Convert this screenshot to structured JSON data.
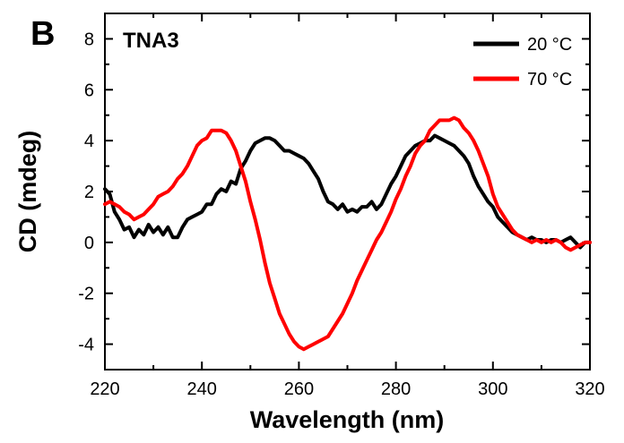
{
  "panel_label": "B",
  "chart_data": {
    "type": "line",
    "title": "TNA3",
    "xlabel": "Wavelength (nm)",
    "ylabel": "CD (mdeg)",
    "xlim": [
      220,
      320
    ],
    "ylim": [
      -5,
      9
    ],
    "xticks": [
      220,
      240,
      260,
      280,
      300,
      320
    ],
    "yticks": [
      -4,
      -2,
      0,
      2,
      4,
      6,
      8
    ],
    "grid": false,
    "legend_position": "top-right",
    "series": [
      {
        "name": "20 °C",
        "color": "#000000",
        "x": [
          220,
          221,
          222,
          223,
          224,
          225,
          226,
          227,
          228,
          229,
          230,
          231,
          232,
          233,
          234,
          235,
          236,
          237,
          238,
          239,
          240,
          241,
          242,
          243,
          244,
          245,
          246,
          247,
          248,
          249,
          250,
          251,
          252,
          253,
          254,
          255,
          256,
          257,
          258,
          259,
          260,
          261,
          262,
          263,
          264,
          265,
          266,
          267,
          268,
          269,
          270,
          271,
          272,
          273,
          274,
          275,
          276,
          277,
          278,
          279,
          280,
          281,
          282,
          283,
          284,
          285,
          286,
          287,
          288,
          289,
          290,
          291,
          292,
          293,
          294,
          295,
          296,
          297,
          298,
          299,
          300,
          301,
          302,
          303,
          304,
          305,
          306,
          307,
          308,
          309,
          310,
          311,
          312,
          313,
          314,
          315,
          316,
          317,
          318,
          319,
          320
        ],
        "y": [
          2.1,
          1.9,
          1.2,
          0.9,
          0.5,
          0.6,
          0.2,
          0.5,
          0.3,
          0.7,
          0.4,
          0.6,
          0.3,
          0.6,
          0.2,
          0.2,
          0.6,
          0.9,
          1.0,
          1.1,
          1.2,
          1.5,
          1.5,
          1.9,
          2.1,
          2.0,
          2.4,
          2.3,
          2.9,
          3.2,
          3.6,
          3.9,
          4.0,
          4.1,
          4.1,
          4.0,
          3.8,
          3.6,
          3.6,
          3.5,
          3.4,
          3.3,
          3.1,
          2.8,
          2.5,
          2.0,
          1.6,
          1.5,
          1.3,
          1.5,
          1.2,
          1.3,
          1.2,
          1.4,
          1.4,
          1.6,
          1.3,
          1.5,
          1.9,
          2.3,
          2.6,
          3.0,
          3.4,
          3.6,
          3.8,
          3.9,
          4.0,
          4.0,
          4.2,
          4.1,
          4.0,
          3.9,
          3.8,
          3.6,
          3.4,
          3.1,
          2.6,
          2.2,
          1.9,
          1.6,
          1.4,
          1.0,
          0.8,
          0.6,
          0.4,
          0.3,
          0.2,
          0.1,
          0.2,
          0.1,
          0.1,
          0.0,
          0.1,
          0.1,
          0.0,
          0.1,
          0.2,
          0.0,
          -0.2,
          0.0,
          0.0
        ]
      },
      {
        "name": "70 °C",
        "color": "#ff0000",
        "x": [
          220,
          221,
          222,
          223,
          224,
          225,
          226,
          227,
          228,
          229,
          230,
          231,
          232,
          233,
          234,
          235,
          236,
          237,
          238,
          239,
          240,
          241,
          242,
          243,
          244,
          245,
          246,
          247,
          248,
          249,
          250,
          251,
          252,
          253,
          254,
          255,
          256,
          257,
          258,
          259,
          260,
          261,
          262,
          263,
          264,
          265,
          266,
          267,
          268,
          269,
          270,
          271,
          272,
          273,
          274,
          275,
          276,
          277,
          278,
          279,
          280,
          281,
          282,
          283,
          284,
          285,
          286,
          287,
          288,
          289,
          290,
          291,
          292,
          293,
          294,
          295,
          296,
          297,
          298,
          299,
          300,
          301,
          302,
          303,
          304,
          305,
          306,
          307,
          308,
          309,
          310,
          311,
          312,
          313,
          314,
          315,
          316,
          317,
          318,
          319,
          320
        ],
        "y": [
          1.5,
          1.6,
          1.5,
          1.4,
          1.2,
          1.1,
          0.9,
          1.0,
          1.1,
          1.3,
          1.5,
          1.8,
          1.9,
          2.0,
          2.2,
          2.5,
          2.7,
          3.0,
          3.4,
          3.8,
          4.0,
          4.1,
          4.4,
          4.4,
          4.4,
          4.3,
          4.0,
          3.6,
          3.0,
          2.4,
          1.6,
          0.9,
          0.1,
          -0.8,
          -1.6,
          -2.2,
          -2.8,
          -3.2,
          -3.6,
          -3.9,
          -4.1,
          -4.2,
          -4.1,
          -4.0,
          -3.9,
          -3.8,
          -3.7,
          -3.4,
          -3.1,
          -2.8,
          -2.4,
          -2.0,
          -1.5,
          -1.1,
          -0.7,
          -0.3,
          0.1,
          0.4,
          0.8,
          1.2,
          1.7,
          2.1,
          2.6,
          3.0,
          3.5,
          3.8,
          4.0,
          4.4,
          4.6,
          4.8,
          4.8,
          4.8,
          4.9,
          4.8,
          4.5,
          4.3,
          4.0,
          3.6,
          3.1,
          2.6,
          1.9,
          1.4,
          1.1,
          0.8,
          0.5,
          0.3,
          0.2,
          0.1,
          0.0,
          0.1,
          0.0,
          0.1,
          0.0,
          0.1,
          0.0,
          -0.2,
          -0.3,
          -0.2,
          -0.1,
          0.0,
          0.0
        ]
      }
    ]
  }
}
